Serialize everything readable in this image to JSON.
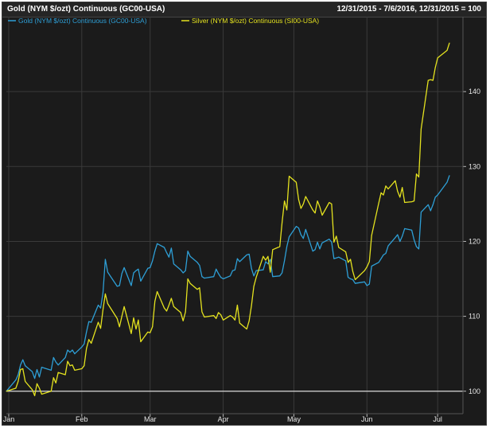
{
  "header": {
    "title": "Gold (NYM $/ozt) Continuous (GC00-USA)",
    "range": "12/31/2015 - 7/6/2016, 12/31/2015 = 100"
  },
  "colors": {
    "gold": "#2e9fd6",
    "silver": "#e4e21f",
    "baseline": "#d8d8d8",
    "grid": "#3a3a3a",
    "background": "#1b1b1b"
  },
  "chart_data": {
    "type": "line",
    "title": "Gold (NYM $/ozt) Continuous (GC00-USA)",
    "subtitle": "12/31/2015 - 7/6/2016, 12/31/2015 = 100",
    "x_range": [
      "2015-12-31",
      "2016-07-06"
    ],
    "ylim": [
      97,
      150
    ],
    "y_ticks": [
      100,
      110,
      120,
      130,
      140
    ],
    "y_axis_side": "right",
    "baseline": 100,
    "grid": true,
    "legend": {
      "placement": "top-left"
    },
    "x_ticks": [
      {
        "date": "2016-01-01",
        "label": "Jan"
      },
      {
        "date": "2016-02-01",
        "label": "Feb"
      },
      {
        "date": "2016-03-01",
        "label": "Mar"
      },
      {
        "date": "2016-04-01",
        "label": "Apr"
      },
      {
        "date": "2016-05-01",
        "label": "May"
      },
      {
        "date": "2016-06-01",
        "label": "Jun"
      },
      {
        "date": "2016-07-01",
        "label": "Jul"
      }
    ],
    "series": [
      {
        "name": "Gold (NYM $/ozt) Continuous (GC00-USA)",
        "color": "#2e9fd6",
        "points": [
          [
            "2015-12-31",
            100.0
          ],
          [
            "2016-01-04",
            101.5
          ],
          [
            "2016-01-05",
            102.2
          ],
          [
            "2016-01-06",
            103.5
          ],
          [
            "2016-01-07",
            104.2
          ],
          [
            "2016-01-08",
            103.4
          ],
          [
            "2016-01-11",
            102.6
          ],
          [
            "2016-01-12",
            101.7
          ],
          [
            "2016-01-13",
            102.9
          ],
          [
            "2016-01-14",
            101.9
          ],
          [
            "2016-01-15",
            103.2
          ],
          [
            "2016-01-19",
            102.8
          ],
          [
            "2016-01-20",
            104.5
          ],
          [
            "2016-01-21",
            103.9
          ],
          [
            "2016-01-22",
            103.5
          ],
          [
            "2016-01-25",
            104.5
          ],
          [
            "2016-01-26",
            105.5
          ],
          [
            "2016-01-27",
            105.2
          ],
          [
            "2016-01-28",
            105.5
          ],
          [
            "2016-01-29",
            105.0
          ],
          [
            "2016-02-01",
            105.9
          ],
          [
            "2016-02-02",
            106.3
          ],
          [
            "2016-02-03",
            107.9
          ],
          [
            "2016-02-04",
            109.3
          ],
          [
            "2016-02-05",
            109.2
          ],
          [
            "2016-02-08",
            111.5
          ],
          [
            "2016-02-09",
            111.1
          ],
          [
            "2016-02-10",
            113.2
          ],
          [
            "2016-02-11",
            117.6
          ],
          [
            "2016-02-12",
            115.9
          ],
          [
            "2016-02-16",
            114.0
          ],
          [
            "2016-02-17",
            114.1
          ],
          [
            "2016-02-18",
            115.7
          ],
          [
            "2016-02-19",
            116.5
          ],
          [
            "2016-02-22",
            114.1
          ],
          [
            "2016-02-23",
            115.8
          ],
          [
            "2016-02-24",
            116.1
          ],
          [
            "2016-02-25",
            116.3
          ],
          [
            "2016-02-26",
            114.7
          ],
          [
            "2016-02-29",
            116.4
          ],
          [
            "2016-03-01",
            116.5
          ],
          [
            "2016-03-02",
            117.4
          ],
          [
            "2016-03-03",
            118.7
          ],
          [
            "2016-03-04",
            119.7
          ],
          [
            "2016-03-07",
            119.2
          ],
          [
            "2016-03-08",
            118.5
          ],
          [
            "2016-03-09",
            117.9
          ],
          [
            "2016-03-10",
            119.1
          ],
          [
            "2016-03-11",
            117.0
          ],
          [
            "2016-03-14",
            116.2
          ],
          [
            "2016-03-15",
            115.8
          ],
          [
            "2016-03-16",
            116.1
          ],
          [
            "2016-03-17",
            118.7
          ],
          [
            "2016-03-18",
            118.0
          ],
          [
            "2016-03-21",
            117.2
          ],
          [
            "2016-03-22",
            116.8
          ],
          [
            "2016-03-23",
            115.3
          ],
          [
            "2016-03-24",
            115.1
          ],
          [
            "2016-03-28",
            115.3
          ],
          [
            "2016-03-29",
            116.3
          ],
          [
            "2016-03-30",
            115.7
          ],
          [
            "2016-03-31",
            115.2
          ],
          [
            "2016-04-01",
            115.0
          ],
          [
            "2016-04-04",
            115.4
          ],
          [
            "2016-04-05",
            116.1
          ],
          [
            "2016-04-06",
            116.2
          ],
          [
            "2016-04-07",
            117.7
          ],
          [
            "2016-04-08",
            117.3
          ],
          [
            "2016-04-11",
            118.2
          ],
          [
            "2016-04-12",
            118.3
          ],
          [
            "2016-04-13",
            116.4
          ],
          [
            "2016-04-14",
            115.4
          ],
          [
            "2016-04-15",
            116.1
          ],
          [
            "2016-04-18",
            116.2
          ],
          [
            "2016-04-19",
            117.3
          ],
          [
            "2016-04-20",
            117.0
          ],
          [
            "2016-04-21",
            117.6
          ],
          [
            "2016-04-22",
            115.3
          ],
          [
            "2016-04-25",
            115.4
          ],
          [
            "2016-04-26",
            115.8
          ],
          [
            "2016-04-27",
            117.4
          ],
          [
            "2016-04-28",
            119.3
          ],
          [
            "2016-04-29",
            120.6
          ],
          [
            "2016-05-02",
            122.0
          ],
          [
            "2016-05-03",
            121.8
          ],
          [
            "2016-05-04",
            120.9
          ],
          [
            "2016-05-05",
            120.4
          ],
          [
            "2016-05-06",
            121.6
          ],
          [
            "2016-05-09",
            118.7
          ],
          [
            "2016-05-10",
            118.9
          ],
          [
            "2016-05-11",
            119.9
          ],
          [
            "2016-05-12",
            119.0
          ],
          [
            "2016-05-13",
            119.8
          ],
          [
            "2016-05-16",
            120.3
          ],
          [
            "2016-05-17",
            119.9
          ],
          [
            "2016-05-18",
            117.7
          ],
          [
            "2016-05-19",
            117.8
          ],
          [
            "2016-05-20",
            117.9
          ],
          [
            "2016-05-23",
            117.4
          ],
          [
            "2016-05-24",
            115.2
          ],
          [
            "2016-05-25",
            115.0
          ],
          [
            "2016-05-26",
            114.9
          ],
          [
            "2016-05-27",
            114.4
          ],
          [
            "2016-05-31",
            114.6
          ],
          [
            "2016-06-01",
            114.1
          ],
          [
            "2016-06-02",
            114.3
          ],
          [
            "2016-06-03",
            116.7
          ],
          [
            "2016-06-06",
            117.2
          ],
          [
            "2016-06-07",
            117.7
          ],
          [
            "2016-06-08",
            118.2
          ],
          [
            "2016-06-09",
            118.4
          ],
          [
            "2016-06-10",
            119.4
          ],
          [
            "2016-06-13",
            120.5
          ],
          [
            "2016-06-14",
            120.9
          ],
          [
            "2016-06-15",
            120.0
          ],
          [
            "2016-06-16",
            120.7
          ],
          [
            "2016-06-17",
            121.7
          ],
          [
            "2016-06-20",
            121.5
          ],
          [
            "2016-06-21",
            120.2
          ],
          [
            "2016-06-22",
            119.3
          ],
          [
            "2016-06-23",
            119.0
          ],
          [
            "2016-06-24",
            123.9
          ],
          [
            "2016-06-27",
            124.9
          ],
          [
            "2016-06-28",
            124.1
          ],
          [
            "2016-06-29",
            124.9
          ],
          [
            "2016-06-30",
            125.9
          ],
          [
            "2016-07-01",
            126.2
          ],
          [
            "2016-07-05",
            127.9
          ],
          [
            "2016-07-06",
            128.8
          ]
        ]
      },
      {
        "name": "Silver (NYM $/ozt) Continuous (SI00-USA)",
        "color": "#e4e21f",
        "points": [
          [
            "2015-12-31",
            100.0
          ],
          [
            "2016-01-04",
            100.4
          ],
          [
            "2016-01-05",
            101.3
          ],
          [
            "2016-01-06",
            102.9
          ],
          [
            "2016-01-07",
            103.0
          ],
          [
            "2016-01-08",
            101.3
          ],
          [
            "2016-01-11",
            100.2
          ],
          [
            "2016-01-12",
            99.4
          ],
          [
            "2016-01-13",
            101.0
          ],
          [
            "2016-01-14",
            100.4
          ],
          [
            "2016-01-15",
            99.6
          ],
          [
            "2016-01-19",
            100.0
          ],
          [
            "2016-01-20",
            101.8
          ],
          [
            "2016-01-21",
            101.1
          ],
          [
            "2016-01-22",
            102.5
          ],
          [
            "2016-01-25",
            102.2
          ],
          [
            "2016-01-26",
            104.0
          ],
          [
            "2016-01-27",
            103.4
          ],
          [
            "2016-01-28",
            103.5
          ],
          [
            "2016-01-29",
            102.8
          ],
          [
            "2016-02-01",
            103.0
          ],
          [
            "2016-02-02",
            103.4
          ],
          [
            "2016-02-03",
            105.7
          ],
          [
            "2016-02-04",
            106.9
          ],
          [
            "2016-02-05",
            106.4
          ],
          [
            "2016-02-08",
            109.2
          ],
          [
            "2016-02-09",
            108.4
          ],
          [
            "2016-02-10",
            110.9
          ],
          [
            "2016-02-11",
            113.0
          ],
          [
            "2016-02-12",
            111.7
          ],
          [
            "2016-02-16",
            109.7
          ],
          [
            "2016-02-17",
            108.6
          ],
          [
            "2016-02-18",
            110.0
          ],
          [
            "2016-02-19",
            111.3
          ],
          [
            "2016-02-22",
            107.7
          ],
          [
            "2016-02-23",
            109.8
          ],
          [
            "2016-02-24",
            108.3
          ],
          [
            "2016-02-25",
            109.5
          ],
          [
            "2016-02-26",
            106.6
          ],
          [
            "2016-02-29",
            107.9
          ],
          [
            "2016-03-01",
            107.8
          ],
          [
            "2016-03-02",
            108.6
          ],
          [
            "2016-03-03",
            112.0
          ],
          [
            "2016-03-04",
            113.3
          ],
          [
            "2016-03-07",
            111.1
          ],
          [
            "2016-03-08",
            110.7
          ],
          [
            "2016-03-09",
            111.5
          ],
          [
            "2016-03-10",
            112.4
          ],
          [
            "2016-03-11",
            111.3
          ],
          [
            "2016-03-14",
            110.5
          ],
          [
            "2016-03-15",
            109.4
          ],
          [
            "2016-03-16",
            110.6
          ],
          [
            "2016-03-17",
            115.0
          ],
          [
            "2016-03-18",
            114.4
          ],
          [
            "2016-03-21",
            113.6
          ],
          [
            "2016-03-22",
            113.8
          ],
          [
            "2016-03-23",
            110.6
          ],
          [
            "2016-03-24",
            109.9
          ],
          [
            "2016-03-28",
            110.1
          ],
          [
            "2016-03-29",
            109.7
          ],
          [
            "2016-03-30",
            110.5
          ],
          [
            "2016-03-31",
            110.2
          ],
          [
            "2016-04-01",
            109.5
          ],
          [
            "2016-04-04",
            110.1
          ],
          [
            "2016-04-05",
            109.9
          ],
          [
            "2016-04-06",
            109.5
          ],
          [
            "2016-04-07",
            111.5
          ],
          [
            "2016-04-08",
            109.1
          ],
          [
            "2016-04-11",
            108.3
          ],
          [
            "2016-04-12",
            109.4
          ],
          [
            "2016-04-13",
            111.4
          ],
          [
            "2016-04-14",
            114.0
          ],
          [
            "2016-04-15",
            115.2
          ],
          [
            "2016-04-18",
            118.0
          ],
          [
            "2016-04-19",
            117.5
          ],
          [
            "2016-04-20",
            118.0
          ],
          [
            "2016-04-21",
            115.9
          ],
          [
            "2016-04-22",
            118.9
          ],
          [
            "2016-04-25",
            119.3
          ],
          [
            "2016-04-26",
            122.5
          ],
          [
            "2016-04-27",
            125.4
          ],
          [
            "2016-04-28",
            124.2
          ],
          [
            "2016-04-29",
            128.7
          ],
          [
            "2016-05-02",
            127.9
          ],
          [
            "2016-05-03",
            125.6
          ],
          [
            "2016-05-04",
            124.4
          ],
          [
            "2016-05-05",
            125.0
          ],
          [
            "2016-05-06",
            126.0
          ],
          [
            "2016-05-09",
            124.2
          ],
          [
            "2016-05-10",
            123.8
          ],
          [
            "2016-05-11",
            125.4
          ],
          [
            "2016-05-12",
            124.6
          ],
          [
            "2016-05-13",
            123.5
          ],
          [
            "2016-05-16",
            125.2
          ],
          [
            "2016-05-17",
            125.0
          ],
          [
            "2016-05-18",
            119.9
          ],
          [
            "2016-05-19",
            120.7
          ],
          [
            "2016-05-20",
            119.2
          ],
          [
            "2016-05-23",
            118.6
          ],
          [
            "2016-05-24",
            117.2
          ],
          [
            "2016-05-25",
            117.6
          ],
          [
            "2016-05-26",
            116.0
          ],
          [
            "2016-05-27",
            114.9
          ],
          [
            "2016-05-31",
            116.1
          ],
          [
            "2016-06-01",
            116.6
          ],
          [
            "2016-06-02",
            117.3
          ],
          [
            "2016-06-03",
            120.8
          ],
          [
            "2016-06-06",
            125.1
          ],
          [
            "2016-06-07",
            126.5
          ],
          [
            "2016-06-08",
            126.2
          ],
          [
            "2016-06-09",
            127.4
          ],
          [
            "2016-06-10",
            127.0
          ],
          [
            "2016-06-13",
            128.1
          ],
          [
            "2016-06-14",
            126.7
          ],
          [
            "2016-06-15",
            125.9
          ],
          [
            "2016-06-16",
            127.2
          ],
          [
            "2016-06-17",
            125.2
          ],
          [
            "2016-06-20",
            125.3
          ],
          [
            "2016-06-21",
            125.4
          ],
          [
            "2016-06-22",
            129.0
          ],
          [
            "2016-06-23",
            128.6
          ],
          [
            "2016-06-24",
            135.0
          ],
          [
            "2016-06-27",
            141.5
          ],
          [
            "2016-06-28",
            141.6
          ],
          [
            "2016-06-29",
            141.5
          ],
          [
            "2016-06-30",
            143.2
          ],
          [
            "2016-07-01",
            144.5
          ],
          [
            "2016-07-05",
            145.5
          ],
          [
            "2016-07-06",
            146.5
          ]
        ]
      }
    ]
  }
}
